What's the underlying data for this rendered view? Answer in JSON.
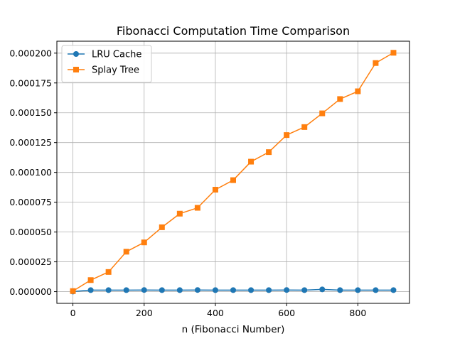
{
  "chart_data": {
    "type": "line",
    "title": "Fibonacci Computation Time Comparison",
    "xlabel": "n (Fibonacci Number)",
    "ylabel": "",
    "x": [
      0,
      50,
      100,
      150,
      200,
      250,
      300,
      350,
      400,
      450,
      500,
      550,
      600,
      650,
      700,
      750,
      800,
      850,
      900
    ],
    "xlim": [
      -45,
      945
    ],
    "ylim": [
      -9.8e-06,
      0.00021
    ],
    "x_ticks": [
      0,
      200,
      400,
      600,
      800
    ],
    "x_tick_labels": [
      "0",
      "200",
      "400",
      "600",
      "800"
    ],
    "y_ticks": [
      0,
      2.5e-05,
      5e-05,
      7.5e-05,
      0.0001,
      0.000125,
      0.00015,
      0.000175,
      0.0002
    ],
    "y_tick_labels": [
      "0.000000",
      "0.000025",
      "0.000050",
      "0.000075",
      "0.000100",
      "0.000125",
      "0.000150",
      "0.000175",
      "0.000200"
    ],
    "grid": true,
    "legend_position": "top-left",
    "series": [
      {
        "name": "LRU Cache",
        "color": "#1f77b4",
        "marker": "circle",
        "values": [
          1e-07,
          1.3e-06,
          1.3e-06,
          1.3e-06,
          1.4e-06,
          1.3e-06,
          1.3e-06,
          1.4e-06,
          1.3e-06,
          1.3e-06,
          1.3e-06,
          1.3e-06,
          1.4e-06,
          1.3e-06,
          1.9e-06,
          1.3e-06,
          1.3e-06,
          1.3e-06,
          1.3e-06
        ]
      },
      {
        "name": "Splay Tree",
        "color": "#ff7f0e",
        "marker": "square",
        "values": [
          5e-07,
          9.7e-06,
          1.65e-05,
          3.35e-05,
          4.13e-05,
          5.4e-05,
          6.54e-05,
          7.03e-05,
          8.55e-05,
          9.35e-05,
          0.000109,
          0.000117,
          0.0001313,
          0.000138,
          0.0001495,
          0.0001615,
          0.000168,
          0.0001917,
          0.0002003
        ]
      }
    ]
  }
}
